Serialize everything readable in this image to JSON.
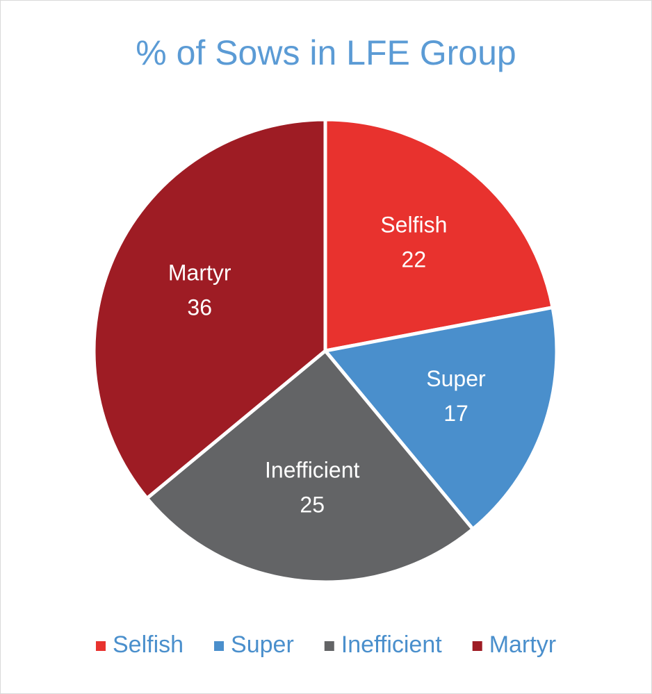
{
  "chart_data": {
    "type": "pie",
    "title": "% of Sows in LFE Group",
    "categories": [
      "Selfish",
      "Super",
      "Inefficient",
      "Martyr"
    ],
    "values": [
      22,
      17,
      25,
      36
    ],
    "colors": [
      "#e8322e",
      "#4a8fcc",
      "#636466",
      "#9e1c24"
    ],
    "title_color": "#5b9bd5",
    "legend": "bottom"
  }
}
